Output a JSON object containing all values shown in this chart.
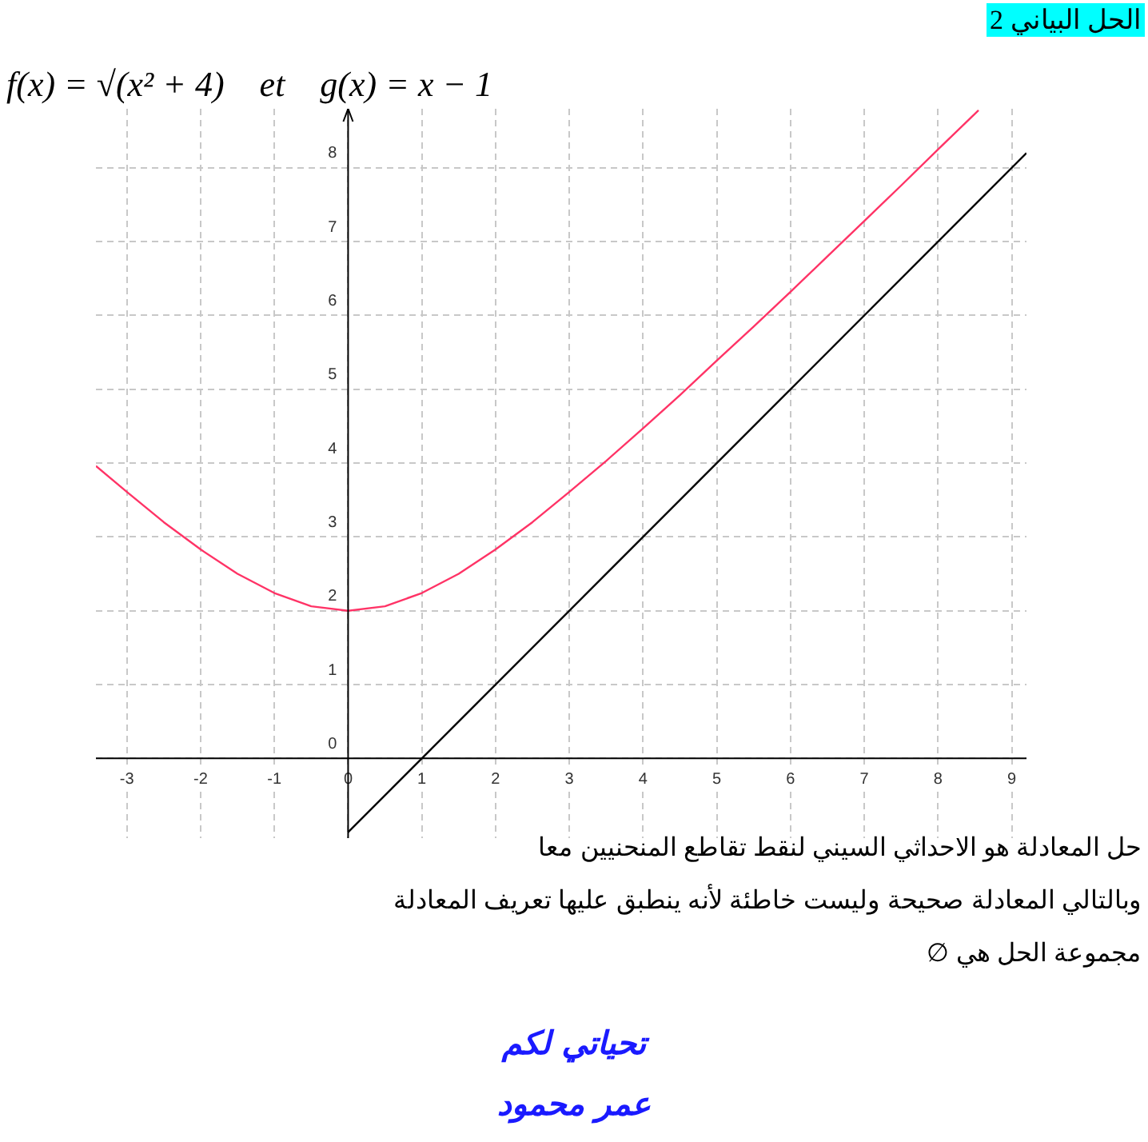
{
  "chart_data": {
    "type": "line",
    "title": "الحل البياني 2",
    "subtitle": "f(x) = √(x² + 4)    et    g(x) = x − 1",
    "xlim": [
      -3.42,
      9.2
    ],
    "ylim": [
      -1.08,
      8.8
    ],
    "xticks": [
      -3,
      -2,
      -1,
      0,
      1,
      2,
      3,
      4,
      5,
      6,
      7,
      8,
      9
    ],
    "yticks": [
      0,
      1,
      2,
      3,
      4,
      5,
      6,
      7,
      8
    ],
    "grid": true,
    "legend": false,
    "marker": "none",
    "line_style": "solid",
    "series": [
      {
        "color": "#ff3366",
        "x": [
          -3.42,
          -3,
          -2.5,
          -2,
          -1.5,
          -1,
          -0.5,
          0,
          0.5,
          1,
          1.5,
          2,
          2.5,
          3,
          3.5,
          4,
          4.5,
          5,
          5.5,
          6,
          6.5,
          7,
          7.5,
          8,
          8.55
        ],
        "values": [
          3.96,
          3.61,
          3.2,
          2.83,
          2.5,
          2.24,
          2.06,
          2,
          2.06,
          2.24,
          2.5,
          2.83,
          3.2,
          3.61,
          4.03,
          4.47,
          4.92,
          5.39,
          5.85,
          6.32,
          6.8,
          7.28,
          7.76,
          8.25,
          8.78
        ]
      },
      {
        "color": "#000000",
        "x": [
          0,
          9.2
        ],
        "values": [
          -1,
          8.2
        ]
      }
    ],
    "annotations": [
      "حل المعادلة هو الاحداثي السيني لنقط تقاطع المنحنيين معا",
      "وبالتالي المعادلة صحيحة وليست خاطئة لأنه ينطبق عليها تعريف المعادلة",
      "مجموعة الحل هي ∅",
      "تحياتي لكم",
      "عمر محمود"
    ]
  }
}
